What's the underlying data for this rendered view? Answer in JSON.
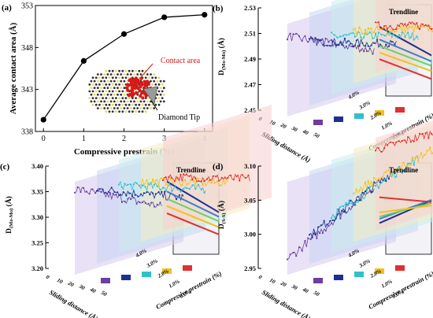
{
  "colors": {
    "purple": "#6a3fa0",
    "navy": "#1f2f8f",
    "blue": "#3d7fd0",
    "cyan": "#2fc1c8",
    "green": "#6ad06a",
    "yellow": "#f0c020",
    "orange": "#f08030",
    "red": "#e03030",
    "contact_red": "#d81818"
  },
  "chart_data": [
    {
      "id": "a",
      "type": "line",
      "panel_label": "(a)",
      "xlabel": "Compressive prestrain (%)",
      "ylabel": "Average contact area (Å)",
      "x": [
        0,
        1,
        2,
        3,
        4
      ],
      "y": [
        339.4,
        346.4,
        349.6,
        351.6,
        351.9
      ],
      "xlim": [
        -0.2,
        4.2
      ],
      "ylim": [
        338,
        353
      ],
      "xticks": [
        "0",
        "1",
        "2",
        "3",
        "4"
      ],
      "yticks": [
        "338",
        "343",
        "348",
        "353"
      ],
      "annotations": {
        "contact": "Contact area",
        "tip": "Diamond Tip"
      }
    },
    {
      "id": "b",
      "type": "line",
      "panel_label": "(b)",
      "ylabel_main": "D",
      "ylabel_sub": "(Mo-Mo)",
      "ylabel_unit": " (Å)",
      "xlabel": "Sliding distance (Å)",
      "zlabel": "Compressive prestrain (%)",
      "yticks": [
        "2.45",
        "2.47",
        "2.49",
        "2.51",
        "2.53"
      ],
      "ylim": [
        2.45,
        2.53
      ],
      "zticks": [
        "0.0%",
        "1.0%",
        "2.0%",
        "3.0%",
        "4.0%"
      ],
      "xticks": [
        "0",
        "10",
        "20",
        "30",
        "40",
        "50"
      ],
      "trend_label": "Trendline",
      "series": [
        {
          "name": "0.0%",
          "start": 2.519,
          "end": 2.484
        },
        {
          "name": "1.0%",
          "start": 2.505,
          "end": 2.48
        },
        {
          "name": "2.0%",
          "start": 2.5,
          "end": 2.478
        },
        {
          "name": "3.0%",
          "start": 2.495,
          "end": 2.475
        },
        {
          "name": "4.0%",
          "start": 2.49,
          "end": 2.468
        }
      ]
    },
    {
      "id": "c",
      "type": "line",
      "panel_label": "(c)",
      "ylabel_main": "D",
      "ylabel_sub": "(Mo-Mo)",
      "ylabel_unit": " (Å)",
      "xlabel": "Sliding distance (Å)",
      "zlabel": "Compressive prestrain (%)",
      "yticks": [
        "3.20",
        "3.25",
        "3.30",
        "3.35",
        "3.40"
      ],
      "ylim": [
        3.2,
        3.4
      ],
      "zticks": [
        "0.0%",
        "1.0%",
        "2.0%",
        "3.0%",
        "4.0%"
      ],
      "xticks": [
        "0",
        "10",
        "20",
        "30",
        "40",
        "50"
      ],
      "trend_label": "Trendline",
      "series": [
        {
          "name": "0.0%",
          "start": 3.385,
          "end": 3.29
        },
        {
          "name": "1.0%",
          "start": 3.36,
          "end": 3.285
        },
        {
          "name": "2.0%",
          "start": 3.345,
          "end": 3.28
        },
        {
          "name": "3.0%",
          "start": 3.33,
          "end": 3.27
        },
        {
          "name": "4.0%",
          "start": 3.315,
          "end": 3.255
        }
      ]
    },
    {
      "id": "d",
      "type": "line",
      "panel_label": "(d)",
      "ylabel_main": "D",
      "ylabel_sub": "(S-S)",
      "ylabel_unit": " (Å)",
      "xlabel": "Sliding distance (Å)",
      "zlabel": "Compressive prestrain (%)",
      "yticks": [
        "2.95",
        "3.00",
        "3.05",
        "3.10"
      ],
      "ylim": [
        2.95,
        3.1
      ],
      "zticks": [
        "0.0%",
        "1.0%",
        "2.0%",
        "3.0%",
        "4.0%"
      ],
      "xticks": [
        "0",
        "10",
        "20",
        "30",
        "40",
        "50"
      ],
      "trend_label": "Trendline",
      "series": [
        {
          "name": "0.0%",
          "start": 2.975,
          "end": 3.05
        },
        {
          "name": "1.0%",
          "start": 2.995,
          "end": 3.06
        },
        {
          "name": "2.0%",
          "start": 3.01,
          "end": 3.06
        },
        {
          "name": "3.0%",
          "start": 3.03,
          "end": 3.062
        },
        {
          "name": "4.0%",
          "start": 3.08,
          "end": 3.08
        }
      ]
    }
  ]
}
